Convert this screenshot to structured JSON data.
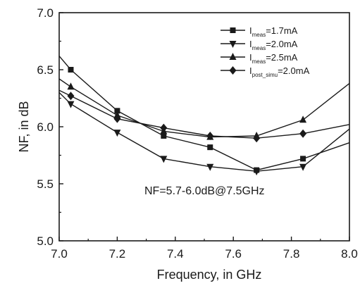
{
  "chart_data": {
    "type": "line",
    "title": "",
    "xlabel": "Frequency, in GHz",
    "ylabel": "NF, in dB",
    "xlim": [
      7.0,
      8.0
    ],
    "ylim": [
      5.0,
      7.0
    ],
    "xticks": [
      "7.0",
      "7.2",
      "7.4",
      "7.6",
      "7.8",
      "8.0"
    ],
    "yticks": [
      "5.0",
      "5.5",
      "6.0",
      "6.5",
      "7.0"
    ],
    "grid": false,
    "legend_position": "top-right",
    "annotation": "NF=5.7-6.0dB@7.5GHz",
    "series": [
      {
        "legend_main": "I",
        "legend_sub": "meas",
        "legend_value": "=1.7mA",
        "marker": "square",
        "x": [
          7.0,
          7.04,
          7.2,
          7.36,
          7.52,
          7.68,
          7.84,
          8.0
        ],
        "y": [
          6.62,
          6.5,
          6.14,
          5.92,
          5.82,
          5.62,
          5.72,
          5.86
        ]
      },
      {
        "legend_main": "I",
        "legend_sub": "meas",
        "legend_value": "=2.0mA",
        "marker": "triangle-down",
        "x": [
          7.0,
          7.04,
          7.2,
          7.36,
          7.52,
          7.68,
          7.84,
          8.0
        ],
        "y": [
          6.3,
          6.2,
          5.95,
          5.72,
          5.65,
          5.61,
          5.65,
          5.98
        ]
      },
      {
        "legend_main": "I",
        "legend_sub": "meas",
        "legend_value": "=2.5mA",
        "marker": "triangle-up",
        "x": [
          7.0,
          7.04,
          7.2,
          7.36,
          7.52,
          7.68,
          7.84,
          8.0
        ],
        "y": [
          6.42,
          6.35,
          6.1,
          5.96,
          5.91,
          5.92,
          6.06,
          6.38
        ]
      },
      {
        "legend_main": "I",
        "legend_sub": "post_simu",
        "legend_value": "=2.0mA",
        "marker": "diamond",
        "x": [
          7.0,
          7.04,
          7.2,
          7.36,
          7.52,
          7.68,
          7.84,
          8.0
        ],
        "y": [
          6.32,
          6.27,
          6.07,
          5.99,
          5.92,
          5.9,
          5.94,
          6.02
        ]
      }
    ]
  }
}
